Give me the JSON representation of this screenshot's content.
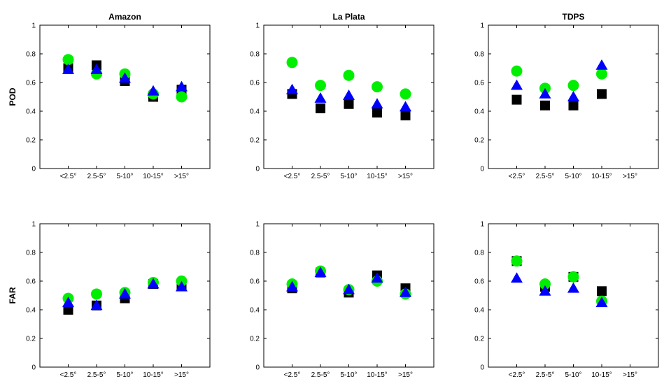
{
  "chart_data": [
    {
      "type": "scatter",
      "title": "Amazon",
      "ylabel": "POD",
      "xlabel": "",
      "ylim": [
        0,
        1
      ],
      "yticks": [
        "0",
        "0.2",
        "0.4",
        "0.6",
        "0.8",
        "1"
      ],
      "categories": [
        "<2.5°",
        "2.5-5°",
        "5-10°",
        "10-15°",
        ">15°"
      ],
      "series": [
        {
          "marker": "square",
          "color": "#000000",
          "values": [
            0.7,
            0.72,
            0.61,
            0.5,
            0.55
          ]
        },
        {
          "marker": "circle",
          "color": "#00ee00",
          "values": [
            0.76,
            0.66,
            0.66,
            0.52,
            0.5
          ]
        },
        {
          "marker": "triangle",
          "color": "#0000ff",
          "values": [
            0.69,
            0.69,
            0.63,
            0.54,
            0.57
          ]
        }
      ]
    },
    {
      "type": "scatter",
      "title": "La Plata",
      "ylabel": "",
      "xlabel": "",
      "ylim": [
        0,
        1
      ],
      "yticks": [
        "0",
        "0.2",
        "0.4",
        "0.6",
        "0.8",
        "1"
      ],
      "categories": [
        "<2.5°",
        "2.5-5°",
        "5-10°",
        "10-15°",
        ">15°"
      ],
      "series": [
        {
          "marker": "square",
          "color": "#000000",
          "values": [
            0.52,
            0.42,
            0.45,
            0.39,
            0.37
          ]
        },
        {
          "marker": "circle",
          "color": "#00ee00",
          "values": [
            0.74,
            0.58,
            0.65,
            0.57,
            0.52
          ]
        },
        {
          "marker": "triangle",
          "color": "#0000ff",
          "values": [
            0.55,
            0.49,
            0.51,
            0.45,
            0.43
          ]
        }
      ]
    },
    {
      "type": "scatter",
      "title": "TDPS",
      "ylabel": "",
      "xlabel": "",
      "ylim": [
        0,
        1
      ],
      "yticks": [
        "0",
        "0.2",
        "0.4",
        "0.6",
        "0.8",
        "1"
      ],
      "categories": [
        "<2.5°",
        "2.5-5°",
        "5-10°",
        "10-15°",
        ">15°"
      ],
      "series": [
        {
          "marker": "square",
          "color": "#000000",
          "values": [
            0.48,
            0.44,
            0.44,
            0.52,
            null
          ]
        },
        {
          "marker": "circle",
          "color": "#00ee00",
          "values": [
            0.68,
            0.56,
            0.58,
            0.66,
            null
          ]
        },
        {
          "marker": "triangle",
          "color": "#0000ff",
          "values": [
            0.58,
            0.52,
            0.5,
            0.72,
            null
          ]
        }
      ]
    },
    {
      "type": "scatter",
      "title": "",
      "ylabel": "FAR",
      "xlabel": "",
      "ylim": [
        0,
        1
      ],
      "yticks": [
        "0",
        "0.2",
        "0.4",
        "0.6",
        "0.8",
        "1"
      ],
      "categories": [
        "<2.5°",
        "2.5-5°",
        "5-10°",
        "10-15°",
        ">15°"
      ],
      "series": [
        {
          "marker": "square",
          "color": "#000000",
          "values": [
            0.4,
            0.43,
            0.48,
            0.58,
            0.57
          ]
        },
        {
          "marker": "circle",
          "color": "#00ee00",
          "values": [
            0.48,
            0.51,
            0.52,
            0.59,
            0.6
          ]
        },
        {
          "marker": "triangle",
          "color": "#0000ff",
          "values": [
            0.45,
            0.43,
            0.51,
            0.58,
            0.56
          ]
        }
      ]
    },
    {
      "type": "scatter",
      "title": "",
      "ylabel": "",
      "xlabel": "",
      "ylim": [
        0,
        1
      ],
      "yticks": [
        "0",
        "0.2",
        "0.4",
        "0.6",
        "0.8",
        "1"
      ],
      "categories": [
        "<2.5°",
        "2.5-5°",
        "5-10°",
        "10-15°",
        ">15°"
      ],
      "series": [
        {
          "marker": "square",
          "color": "#000000",
          "values": [
            0.55,
            0.66,
            0.52,
            0.64,
            0.55
          ]
        },
        {
          "marker": "circle",
          "color": "#00ee00",
          "values": [
            0.58,
            0.67,
            0.54,
            0.6,
            0.51
          ]
        },
        {
          "marker": "triangle",
          "color": "#0000ff",
          "values": [
            0.56,
            0.66,
            0.54,
            0.62,
            0.52
          ]
        }
      ]
    },
    {
      "type": "scatter",
      "title": "",
      "ylabel": "",
      "xlabel": "",
      "ylim": [
        0,
        1
      ],
      "yticks": [
        "0",
        "0.2",
        "0.4",
        "0.6",
        "0.8",
        "1"
      ],
      "categories": [
        "<2.5°",
        "2.5-5°",
        "5-10°",
        "10-15°",
        ">15°"
      ],
      "series": [
        {
          "marker": "square",
          "color": "#000000",
          "values": [
            0.74,
            0.56,
            0.63,
            0.53,
            null
          ]
        },
        {
          "marker": "circle",
          "color": "#00ee00",
          "values": [
            0.74,
            0.58,
            0.63,
            0.46,
            null
          ]
        },
        {
          "marker": "triangle",
          "color": "#0000ff",
          "values": [
            0.62,
            0.53,
            0.55,
            0.45,
            null
          ]
        }
      ]
    }
  ]
}
